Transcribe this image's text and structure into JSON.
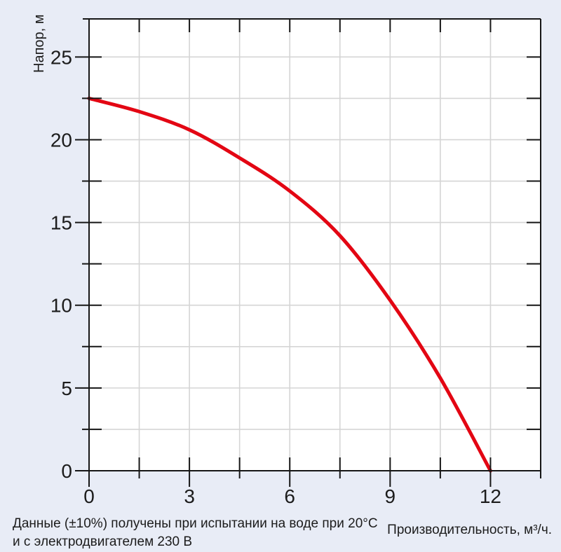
{
  "chart_data": {
    "type": "line",
    "title": "",
    "x_title": "Производительность, м³/ч.",
    "y_title": "Напор, м",
    "xlabel_units": "м³/ч",
    "ylabel_units": "м",
    "xlim": [
      0,
      13.5
    ],
    "ylim": [
      0,
      27.3
    ],
    "x_major_ticks": [
      0,
      3,
      6,
      9,
      12
    ],
    "x_minor_step": 1.5,
    "y_major_ticks": [
      0,
      5,
      10,
      15,
      20,
      25
    ],
    "y_minor_step": 2.5,
    "grid": true,
    "legend": "none",
    "series": [
      {
        "name": "pump-head-curve",
        "points": [
          [
            0,
            22.5
          ],
          [
            1.5,
            21.7
          ],
          [
            3,
            20.6
          ],
          [
            4.5,
            18.9
          ],
          [
            6,
            16.9
          ],
          [
            7.5,
            14.2
          ],
          [
            9,
            10.3
          ],
          [
            10.5,
            5.6
          ],
          [
            12,
            0
          ]
        ]
      }
    ],
    "annotation": {
      "line1": "Данные (±10%) получены при испытании на воде при 20°C",
      "line2": "и с электродвигателем 230 В"
    },
    "colors": {
      "background": "#e8ecf6",
      "plot_background": "#ffffff",
      "grid": "#d5d5d5",
      "axis": "#161616",
      "text": "#1c1c1c",
      "curve": "#e30613"
    }
  }
}
